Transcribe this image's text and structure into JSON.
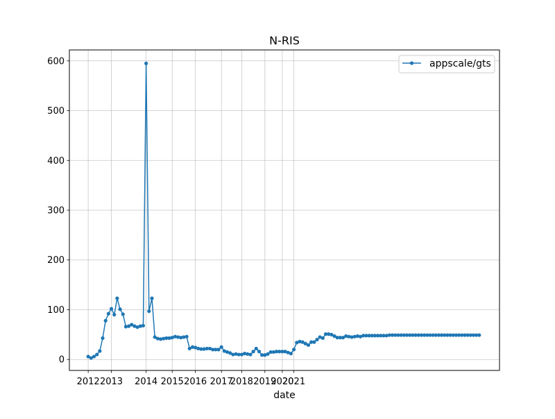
{
  "chart_data": {
    "type": "line",
    "title": "N-RIS",
    "xlabel": "date",
    "ylabel": "",
    "x_ticks": [
      "2012",
      "2013",
      "2014",
      "2015",
      "2016",
      "2017",
      "2018",
      "2019",
      "2020",
      "2021"
    ],
    "y_ticks": [
      0,
      100,
      200,
      300,
      400,
      500,
      600
    ],
    "ylim": [
      -22,
      622
    ],
    "xlim_index": [
      -6.5,
      142
    ],
    "grid": true,
    "legend_position": "top-right",
    "series": [
      {
        "name": "appscale/gts",
        "color": "#1f77b4",
        "marker": "circle",
        "x_index": [
          0,
          1,
          2,
          3,
          4,
          5,
          6,
          7,
          8,
          9,
          10,
          11,
          12,
          13,
          14,
          15,
          16,
          17,
          18,
          19,
          20,
          21,
          22,
          23,
          24,
          25,
          26,
          27,
          28,
          29,
          30,
          31,
          32,
          33,
          34,
          35,
          36,
          37,
          38,
          39,
          40,
          41,
          42,
          43,
          44,
          45,
          46,
          47,
          48,
          49,
          50,
          51,
          52,
          53,
          54,
          55,
          56,
          57,
          58,
          59,
          60,
          61,
          62,
          63,
          64,
          65,
          66,
          67,
          68,
          69,
          70,
          71,
          72,
          73,
          74,
          75,
          76,
          77,
          78,
          79,
          80,
          81,
          82,
          83,
          84,
          85,
          86,
          87,
          88,
          89,
          90,
          91,
          92,
          93,
          94,
          95,
          96,
          97,
          98,
          99,
          100,
          101,
          102,
          103,
          104,
          105,
          106,
          107,
          108,
          109,
          110,
          111,
          112,
          113,
          114,
          115,
          116,
          117,
          118,
          119,
          120,
          121,
          122,
          123,
          124,
          125,
          126,
          127,
          128,
          129,
          130,
          131,
          132,
          133,
          134,
          135
        ],
        "values": [
          6,
          3,
          6,
          10,
          17,
          43,
          78,
          92,
          102,
          90,
          123,
          101,
          91,
          66,
          67,
          70,
          67,
          65,
          67,
          68,
          595,
          97,
          123,
          45,
          42,
          41,
          42,
          43,
          43,
          44,
          46,
          45,
          44,
          45,
          46,
          22,
          25,
          24,
          22,
          21,
          21,
          22,
          22,
          20,
          20,
          20,
          25,
          17,
          15,
          13,
          10,
          11,
          10,
          10,
          12,
          11,
          10,
          16,
          22,
          16,
          9,
          9,
          11,
          15,
          15,
          16,
          16,
          16,
          16,
          14,
          12,
          20,
          34,
          36,
          35,
          32,
          29,
          35,
          35,
          40,
          45,
          43,
          51,
          51,
          50,
          47,
          44,
          44,
          44,
          47,
          46,
          45,
          46,
          47,
          46,
          48,
          48,
          48,
          48,
          48,
          48,
          48,
          48,
          48,
          49,
          49,
          49,
          49,
          49,
          49,
          49,
          49,
          49,
          49,
          49,
          49,
          49,
          49,
          49,
          49,
          49,
          49,
          49,
          49,
          49,
          49,
          49,
          49,
          49,
          49,
          49,
          49,
          49,
          49,
          49,
          49
        ]
      }
    ]
  }
}
